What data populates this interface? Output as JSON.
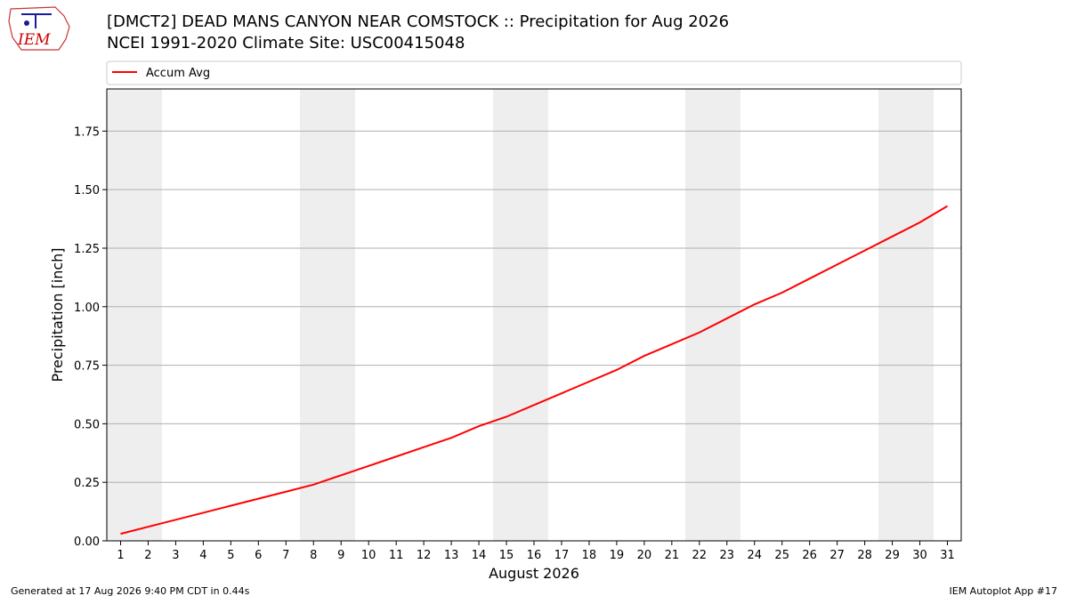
{
  "chart_data": {
    "type": "line",
    "title": "[DMCT2] DEAD MANS CANYON NEAR COMSTOCK :: Precipitation for Aug 2026",
    "subtitle": "NCEI 1991-2020 Climate Site: USC00415048",
    "xlabel": "August 2026",
    "ylabel": "Precipitation [inch]",
    "x": [
      1,
      2,
      3,
      4,
      5,
      6,
      7,
      8,
      9,
      10,
      11,
      12,
      13,
      14,
      15,
      16,
      17,
      18,
      19,
      20,
      21,
      22,
      23,
      24,
      25,
      26,
      27,
      28,
      29,
      30,
      31
    ],
    "series": [
      {
        "name": "Accum Avg",
        "color": "#ff0000",
        "values": [
          0.03,
          0.06,
          0.09,
          0.12,
          0.15,
          0.18,
          0.21,
          0.24,
          0.28,
          0.32,
          0.36,
          0.4,
          0.44,
          0.49,
          0.53,
          0.58,
          0.63,
          0.68,
          0.73,
          0.79,
          0.84,
          0.89,
          0.95,
          1.01,
          1.06,
          1.12,
          1.18,
          1.24,
          1.3,
          1.36,
          1.43
        ]
      }
    ],
    "xlim": [
      0.5,
      31.5
    ],
    "ylim": [
      0,
      1.93
    ],
    "xticks": [
      1,
      2,
      3,
      4,
      5,
      6,
      7,
      8,
      9,
      10,
      11,
      12,
      13,
      14,
      15,
      16,
      17,
      18,
      19,
      20,
      21,
      22,
      23,
      24,
      25,
      26,
      27,
      28,
      29,
      30,
      31
    ],
    "yticks": [
      {
        "value": 0,
        "label": "0.00"
      },
      {
        "value": 0.25,
        "label": "0.25"
      },
      {
        "value": 0.5,
        "label": "0.50"
      },
      {
        "value": 0.75,
        "label": "0.75"
      },
      {
        "value": 1,
        "label": "1.00"
      },
      {
        "value": 1.25,
        "label": "1.25"
      },
      {
        "value": 1.5,
        "label": "1.50"
      },
      {
        "value": 1.75,
        "label": "1.75"
      }
    ],
    "grid": true,
    "legend": "top"
  },
  "logo": "IEM",
  "footer": {
    "left": "Generated at 17 Aug 2026 9:40 PM CDT in 0.44s",
    "right": "IEM Autoplot App #17"
  }
}
